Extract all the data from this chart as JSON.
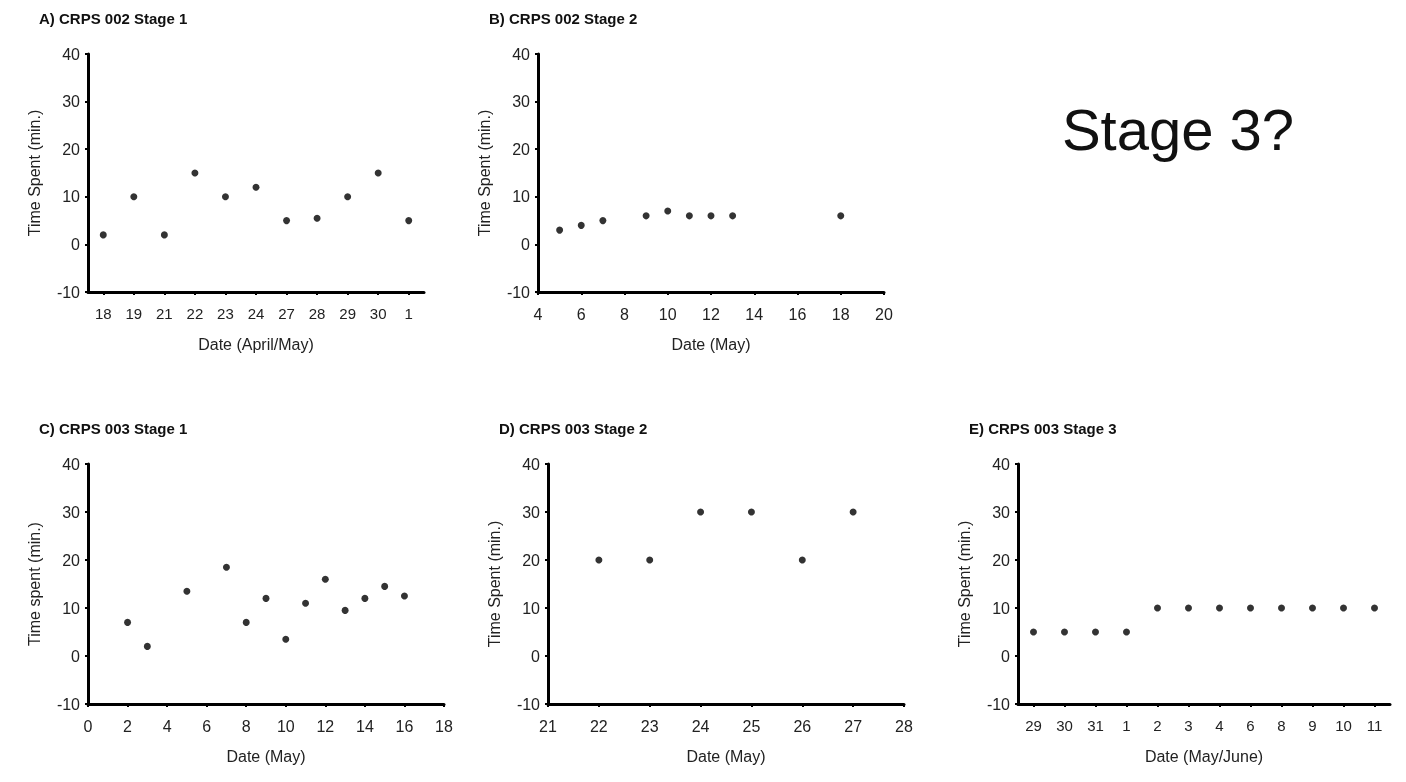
{
  "chart_data": [
    {
      "type": "scatter",
      "title": "A) CRPS 002 Stage 1",
      "xlabel": "Date (April/May)",
      "ylabel": "Time Spent (min.)",
      "categories": [
        "18",
        "19",
        "21",
        "22",
        "23",
        "24",
        "27",
        "28",
        "29",
        "30",
        "1"
      ],
      "values": [
        2,
        10,
        2,
        15,
        10,
        12,
        5,
        5.5,
        10,
        15,
        5
      ],
      "color": "#000000",
      "ylim": [
        -10,
        40
      ],
      "yticks": [
        -10,
        0,
        10,
        20,
        30,
        40
      ],
      "marker": "circle"
    },
    {
      "type": "scatter",
      "title": "B) CRPS 002 Stage 2",
      "xlabel": "Date (May)",
      "ylabel": "Time Spent (min.)",
      "x": [
        5,
        6,
        7,
        9,
        10,
        11,
        12,
        13,
        18
      ],
      "values": [
        3,
        4,
        5,
        6,
        7,
        6,
        6,
        6,
        6
      ],
      "color": "#000000",
      "xlim": [
        4,
        20
      ],
      "xticks": [
        4,
        6,
        8,
        10,
        12,
        14,
        16,
        18,
        20
      ],
      "ylim": [
        -10,
        40
      ],
      "yticks": [
        -10,
        0,
        10,
        20,
        30,
        40
      ],
      "marker": "circle"
    },
    {
      "type": "other",
      "title": "Stage 3?"
    },
    {
      "type": "scatter",
      "title": "C) CRPS 003 Stage 1",
      "xlabel": "Date (May)",
      "ylabel": "Time spent (min.)",
      "x": [
        2,
        3,
        5,
        7,
        8,
        9,
        10,
        11,
        12,
        13,
        14,
        15,
        16
      ],
      "values": [
        7,
        2,
        13.5,
        18.5,
        7,
        12,
        3.5,
        11,
        16,
        9.5,
        12,
        14.5,
        12.5
      ],
      "color": "#000000",
      "xlim": [
        0,
        18
      ],
      "xticks": [
        0,
        2,
        4,
        6,
        8,
        10,
        12,
        14,
        16,
        18
      ],
      "ylim": [
        -10,
        40
      ],
      "yticks": [
        -10,
        0,
        10,
        20,
        30,
        40
      ],
      "marker": "circle"
    },
    {
      "type": "scatter",
      "title": "D) CRPS 003 Stage 2",
      "xlabel": "Date (May)",
      "ylabel": "Time Spent (min.)",
      "x": [
        22,
        23,
        24,
        25,
        26,
        27
      ],
      "values": [
        20,
        20,
        30,
        30,
        20,
        30
      ],
      "color": "#000000",
      "xlim": [
        21,
        28
      ],
      "xticks": [
        21,
        22,
        23,
        24,
        25,
        26,
        27,
        28
      ],
      "ylim": [
        -10,
        40
      ],
      "yticks": [
        -10,
        0,
        10,
        20,
        30,
        40
      ],
      "marker": "circle"
    },
    {
      "type": "scatter",
      "title": "E) CRPS 003 Stage 3",
      "xlabel": "Date (May/June)",
      "ylabel": "Time Spent (min.)",
      "categories": [
        "29",
        "30",
        "31",
        "1",
        "2",
        "3",
        "4",
        "6",
        "8",
        "9",
        "10",
        "11"
      ],
      "values": [
        5,
        5,
        5,
        5,
        10,
        10,
        10,
        10,
        10,
        10,
        10,
        10
      ],
      "color": "#000000",
      "ylim": [
        -10,
        40
      ],
      "yticks": [
        -10,
        0,
        10,
        20,
        30,
        40
      ],
      "marker": "circle"
    }
  ]
}
